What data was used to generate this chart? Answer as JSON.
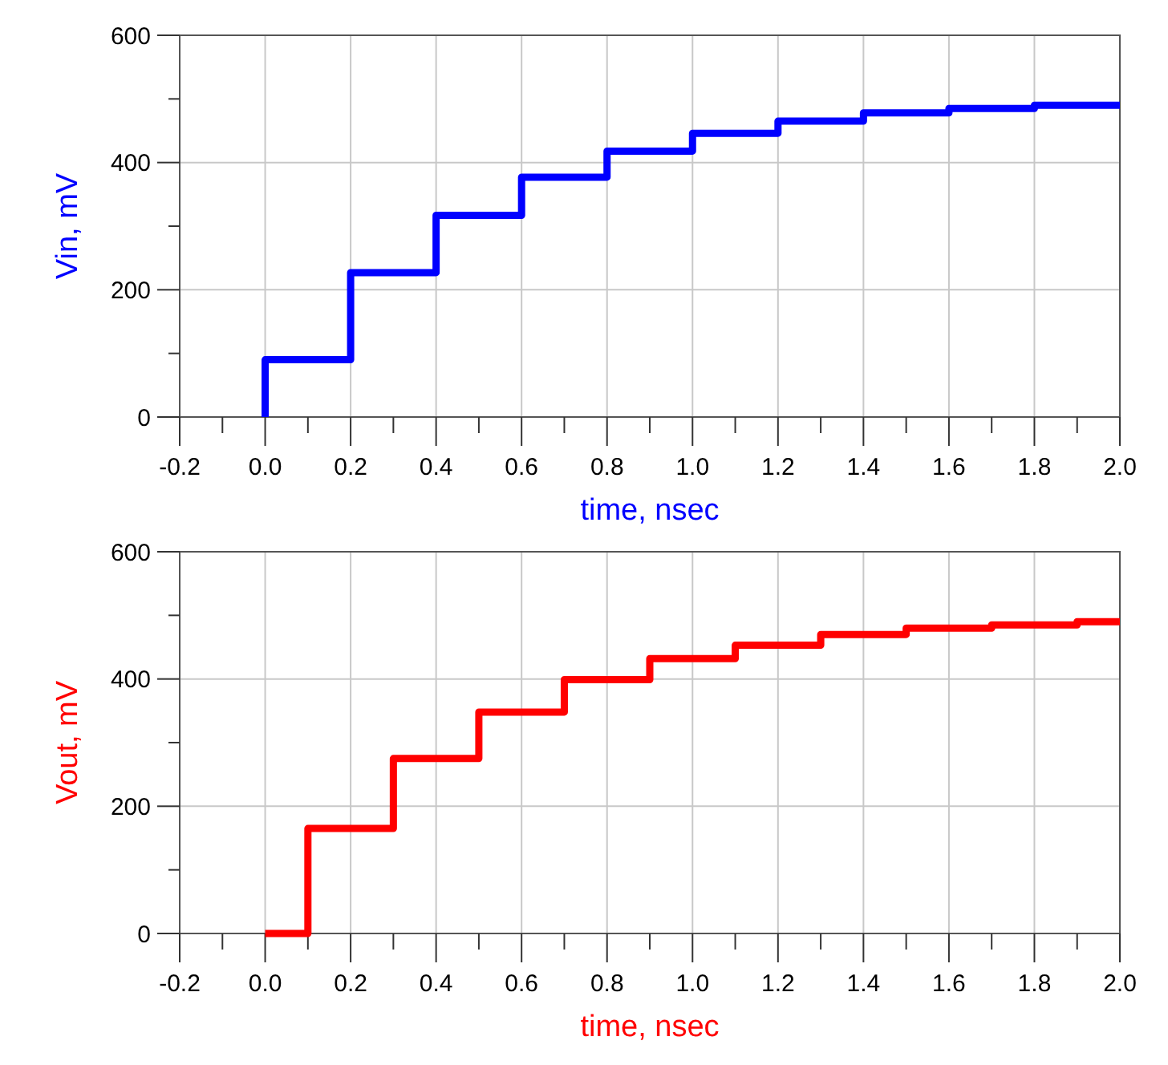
{
  "chart_data": [
    {
      "type": "step",
      "xlabel": "time, nsec",
      "ylabel": "Vin, mV",
      "grid": true,
      "xlim": [
        -0.2,
        2.0
      ],
      "ylim": [
        0,
        600
      ],
      "xticks": [
        -0.2,
        {
          "value": -0.1,
          "label": null
        },
        "0.0",
        {
          "value": 0.1,
          "label": null
        },
        0.2,
        {
          "value": 0.3,
          "label": null
        },
        0.4,
        {
          "value": 0.5,
          "label": null
        },
        0.6,
        {
          "value": 0.7,
          "label": null
        },
        0.8,
        {
          "value": 0.9,
          "label": null
        },
        "1.0",
        {
          "value": 1.1,
          "label": null
        },
        1.2,
        {
          "value": 1.3,
          "label": null
        },
        1.4,
        {
          "value": 1.5,
          "label": null
        },
        1.6,
        {
          "value": 1.7,
          "label": null
        },
        1.8,
        {
          "value": 1.9,
          "label": null
        },
        "2.0"
      ],
      "yticks": [
        0,
        {
          "value": 100,
          "label": null
        },
        200,
        {
          "value": 300,
          "label": null
        },
        400,
        {
          "value": 500,
          "label": null
        },
        600
      ],
      "series": [
        {
          "color": "#0000ff",
          "x": [
            0,
            0,
            0.2,
            0.4,
            0.6,
            0.8,
            1.0,
            1.2,
            1.4,
            1.6,
            1.8,
            2.0
          ],
          "values": [
            0,
            90,
            227,
            317,
            377,
            418,
            446,
            465,
            478,
            485,
            490,
            490
          ]
        }
      ]
    },
    {
      "type": "step",
      "xlabel": "time, nsec",
      "ylabel": "Vout, mV",
      "grid": true,
      "xlim": [
        -0.2,
        2.0
      ],
      "ylim": [
        0,
        600
      ],
      "xticks": [
        -0.2,
        {
          "value": -0.1,
          "label": null
        },
        "0.0",
        {
          "value": 0.1,
          "label": null
        },
        0.2,
        {
          "value": 0.3,
          "label": null
        },
        0.4,
        {
          "value": 0.5,
          "label": null
        },
        0.6,
        {
          "value": 0.7,
          "label": null
        },
        0.8,
        {
          "value": 0.9,
          "label": null
        },
        "1.0",
        {
          "value": 1.1,
          "label": null
        },
        1.2,
        {
          "value": 1.3,
          "label": null
        },
        1.4,
        {
          "value": 1.5,
          "label": null
        },
        1.6,
        {
          "value": 1.7,
          "label": null
        },
        1.8,
        {
          "value": 1.9,
          "label": null
        },
        "2.0"
      ],
      "yticks": [
        0,
        {
          "value": 100,
          "label": null
        },
        200,
        {
          "value": 300,
          "label": null
        },
        400,
        {
          "value": 500,
          "label": null
        },
        600
      ],
      "series": [
        {
          "color": "#ff0000",
          "x": [
            0,
            0.1,
            0.3,
            0.5,
            0.7,
            0.9,
            1.1,
            1.3,
            1.5,
            1.7,
            1.9,
            2.0
          ],
          "values": [
            0,
            165,
            275,
            348,
            399,
            432,
            453,
            470,
            480,
            485,
            490,
            490
          ]
        }
      ]
    }
  ]
}
